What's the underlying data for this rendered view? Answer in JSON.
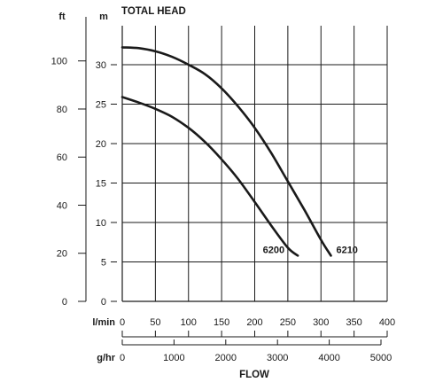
{
  "chart_data": {
    "type": "line",
    "title": "TOTAL HEAD",
    "xlabel": "FLOW",
    "x_units": {
      "primary": "l/min",
      "secondary": "g/hr"
    },
    "y_units": {
      "primary": "m",
      "secondary": "ft"
    },
    "xlim": [
      0,
      400
    ],
    "ylim": [
      0,
      35
    ],
    "x_ticks_lmin": [
      "0",
      "50",
      "100",
      "150",
      "200",
      "250",
      "300",
      "350",
      "400"
    ],
    "x_ticks_lmin_values": [
      0,
      50,
      100,
      150,
      200,
      250,
      300,
      350,
      400
    ],
    "x_ticks_ghr": [
      "0",
      "1000",
      "2000",
      "3000",
      "4000",
      "5000"
    ],
    "x_ticks_ghr_values": [
      0,
      1000,
      2000,
      3000,
      4000,
      5000
    ],
    "y_ticks_m": [
      "0",
      "5",
      "10",
      "15",
      "20",
      "25",
      "30"
    ],
    "y_ticks_m_values": [
      0,
      5,
      10,
      15,
      20,
      25,
      30
    ],
    "y_ticks_ft": [
      "0",
      "20",
      "40",
      "60",
      "80",
      "100"
    ],
    "y_ticks_ft_values": [
      0,
      20,
      40,
      60,
      80,
      100
    ],
    "grid": true,
    "series": [
      {
        "name": "6200",
        "x": [
          0,
          25,
          50,
          75,
          100,
          125,
          150,
          175,
          200,
          225,
          250,
          265
        ],
        "y": [
          25.9,
          25.2,
          24.4,
          23.4,
          22.0,
          20.2,
          18.0,
          15.5,
          12.6,
          9.6,
          6.8,
          5.8
        ]
      },
      {
        "name": "6210",
        "x": [
          0,
          25,
          50,
          75,
          100,
          125,
          150,
          175,
          200,
          225,
          250,
          275,
          300,
          315
        ],
        "y": [
          32.2,
          32.1,
          31.7,
          31.0,
          30.0,
          28.8,
          27.0,
          24.7,
          22.0,
          18.8,
          15.2,
          11.6,
          7.8,
          5.8
        ]
      }
    ]
  }
}
